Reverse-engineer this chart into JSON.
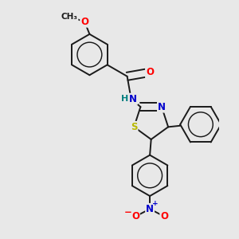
{
  "bg_color": "#e8e8e8",
  "bond_color": "#1a1a1a",
  "bond_width": 1.4,
  "atom_colors": {
    "O": "#ff0000",
    "N": "#0000cc",
    "S": "#b8b800",
    "H": "#008080",
    "C": "#1a1a1a"
  },
  "font_size": 8.5
}
